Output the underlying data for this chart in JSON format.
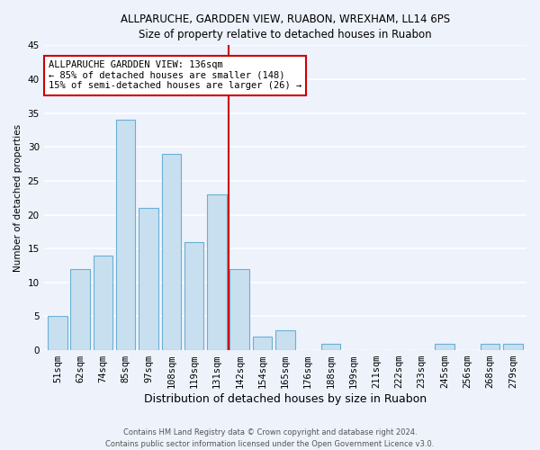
{
  "title": "ALLPARUCHE, GARDDEN VIEW, RUABON, WREXHAM, LL14 6PS",
  "subtitle": "Size of property relative to detached houses in Ruabon",
  "xlabel": "Distribution of detached houses by size in Ruabon",
  "ylabel": "Number of detached properties",
  "bar_labels": [
    "51sqm",
    "62sqm",
    "74sqm",
    "85sqm",
    "97sqm",
    "108sqm",
    "119sqm",
    "131sqm",
    "142sqm",
    "154sqm",
    "165sqm",
    "176sqm",
    "188sqm",
    "199sqm",
    "211sqm",
    "222sqm",
    "233sqm",
    "245sqm",
    "256sqm",
    "268sqm",
    "279sqm"
  ],
  "bar_values": [
    5,
    12,
    14,
    34,
    21,
    29,
    16,
    23,
    12,
    2,
    3,
    0,
    1,
    0,
    0,
    0,
    0,
    1,
    0,
    1,
    1
  ],
  "bar_color": "#c8dff0",
  "bar_edge_color": "#6aafd4",
  "vline_x": 7.5,
  "vline_color": "#cc0000",
  "annotation_line1": "ALLPARUCHE GARDDEN VIEW: 136sqm",
  "annotation_line2": "← 85% of detached houses are smaller (148)",
  "annotation_line3": "15% of semi-detached houses are larger (26) →",
  "annotation_box_color": "white",
  "annotation_box_edge": "#cc0000",
  "ylim": [
    0,
    45
  ],
  "yticks": [
    0,
    5,
    10,
    15,
    20,
    25,
    30,
    35,
    40,
    45
  ],
  "footer_line1": "Contains HM Land Registry data © Crown copyright and database right 2024.",
  "footer_line2": "Contains public sector information licensed under the Open Government Licence v3.0.",
  "bg_color": "#edf2fb",
  "grid_color": "white",
  "title_fontsize": 8.5,
  "subtitle_fontsize": 8.5,
  "xlabel_fontsize": 9,
  "ylabel_fontsize": 7.5,
  "tick_fontsize": 7.5,
  "annotation_fontsize": 7.5,
  "footer_fontsize": 6
}
